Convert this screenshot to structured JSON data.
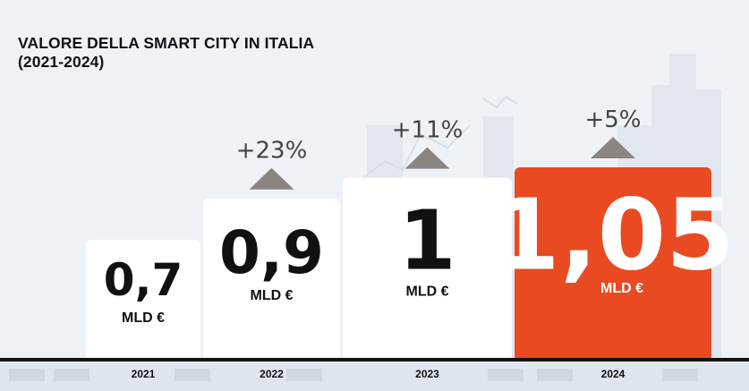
{
  "title_line1": "VALORE DELLA SMART CITY IN ITALIA",
  "title_line2": "(2021-2024)",
  "chart_data": {
    "type": "bar",
    "categories": [
      "2021",
      "2022",
      "2023",
      "2024"
    ],
    "values": [
      0.7,
      0.9,
      1,
      1.05
    ],
    "value_labels": [
      "0,7",
      "0,9",
      "1",
      "1,05"
    ],
    "unit_label": "MLD €",
    "growth_labels": [
      "",
      "+23%",
      "+11%",
      "+5%"
    ],
    "bar_colors": [
      "#ffffff",
      "#ffffff",
      "#ffffff",
      "#e94a22"
    ],
    "value_text_colors": [
      "#111111",
      "#111111",
      "#111111",
      "#ffffff"
    ],
    "arrow_color": "#8a8580",
    "baseline_color": "#111111"
  }
}
